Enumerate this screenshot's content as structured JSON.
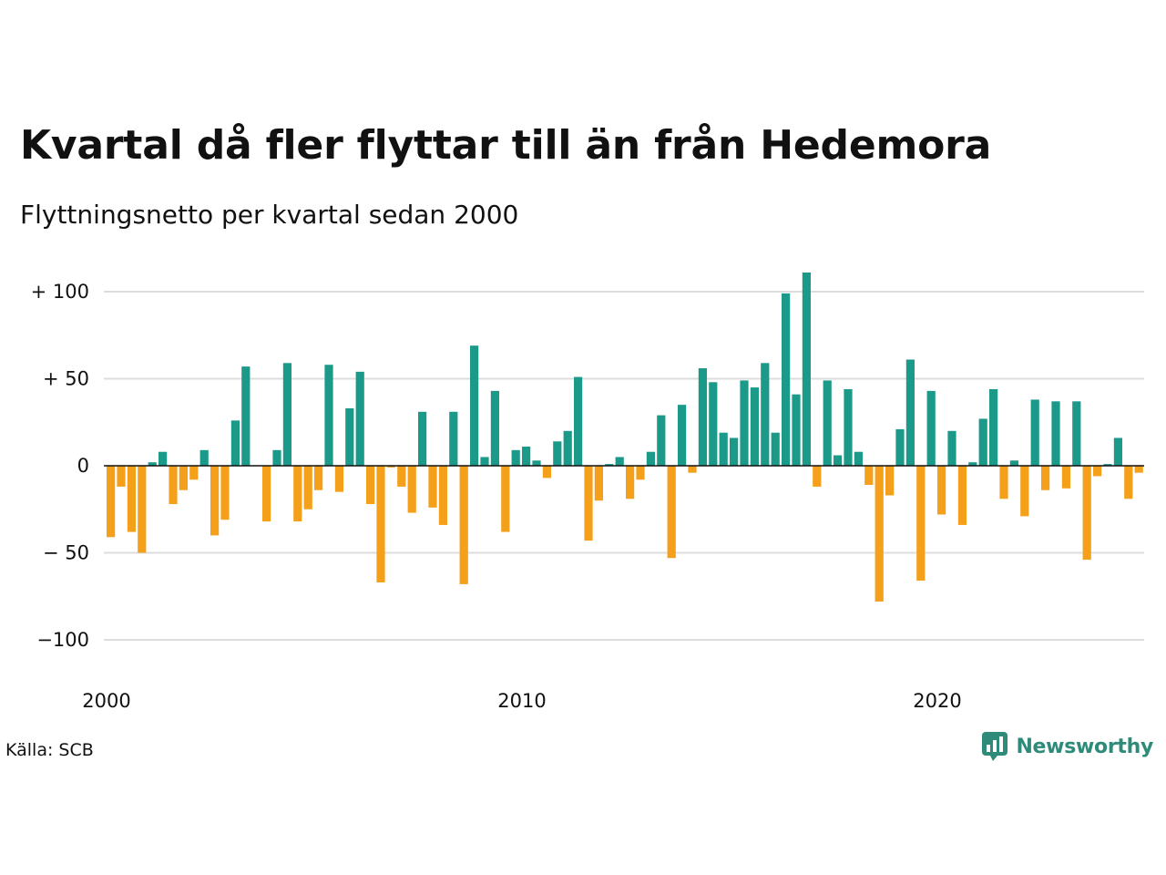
{
  "title": "Kvartal då fler flyttar till än från Hedemora",
  "subtitle": "Flyttningsnetto per kvartal sedan 2000",
  "source": "Källa: SCB",
  "brand": "Newsworthy",
  "colors": {
    "positive": "#1b9a8a",
    "negative": "#f5a01a",
    "grid": "#dddddd",
    "brand": "#2e8b7a"
  },
  "chart_data": {
    "type": "bar",
    "start_year": 2000,
    "ylim": [
      -108,
      115
    ],
    "y_ticks": [
      100,
      50,
      0,
      -50,
      -100
    ],
    "y_tick_labels": [
      "+ 100",
      "+  50",
      "0",
      "− 50",
      "−100"
    ],
    "x_ticks": [
      2000,
      2010,
      2020
    ],
    "x_tick_labels": [
      "2000",
      "2010",
      "2020"
    ],
    "grid": true,
    "values": [
      -41,
      -12,
      -38,
      -50,
      2,
      8,
      -22,
      -14,
      -8,
      9,
      -40,
      -31,
      26,
      57,
      0,
      -32,
      9,
      59,
      -32,
      -25,
      -14,
      58,
      -15,
      33,
      54,
      -22,
      -67,
      -1,
      -12,
      -27,
      31,
      -24,
      -34,
      31,
      -68,
      69,
      5,
      43,
      -38,
      9,
      11,
      3,
      -7,
      14,
      20,
      51,
      -43,
      -20,
      1,
      5,
      -19,
      -8,
      8,
      29,
      -53,
      35,
      -4,
      56,
      48,
      19,
      16,
      49,
      45,
      59,
      19,
      99,
      41,
      111,
      -12,
      49,
      6,
      44,
      8,
      -11,
      -78,
      -17,
      21,
      61,
      -66,
      43,
      -28,
      20,
      -34,
      2,
      27,
      44,
      -19,
      3,
      -29,
      38,
      -14,
      37,
      -13,
      37,
      -54,
      -6,
      1,
      16,
      -19,
      -4
    ]
  }
}
